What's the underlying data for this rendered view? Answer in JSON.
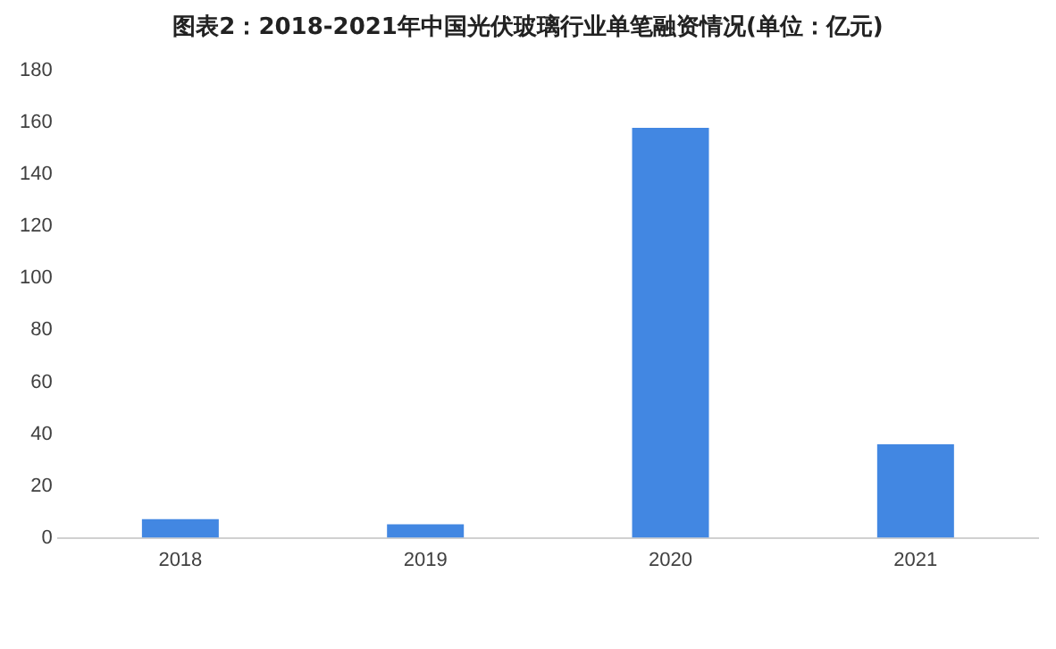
{
  "chart_data": {
    "type": "bar",
    "title": "图表2：2018-2021年中国光伏玻璃行业单笔融资情况(单位：亿元)",
    "categories": [
      "2018",
      "2019",
      "2020",
      "2021"
    ],
    "values": [
      7.2,
      5.2,
      158,
      36
    ],
    "color": "#4287e2",
    "ylim": [
      0,
      180
    ],
    "yticks": [
      0,
      20,
      40,
      60,
      80,
      100,
      120,
      140,
      160,
      180
    ],
    "grid": false,
    "legend": false
  }
}
